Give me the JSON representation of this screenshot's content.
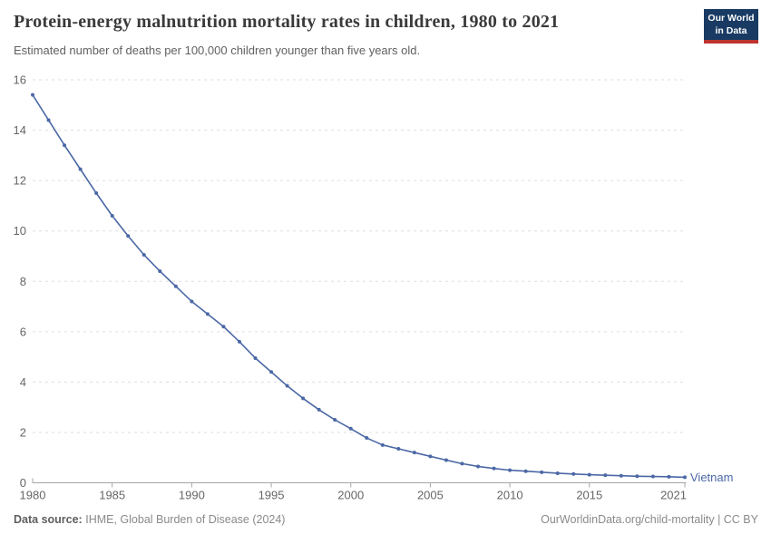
{
  "header": {
    "title": "Protein-energy malnutrition mortality rates in children, 1980 to 2021",
    "subtitle": "Estimated number of deaths per 100,000 children younger than five years old.",
    "logo_line1": "Our World",
    "logo_line2": "in Data"
  },
  "chart_data": {
    "type": "line",
    "title": "Protein-energy malnutrition mortality rates in children, 1980 to 2021",
    "xlabel": "",
    "ylabel": "",
    "xlim": [
      1980,
      2021
    ],
    "ylim": [
      0,
      16
    ],
    "x_ticks": [
      1980,
      1985,
      1990,
      1995,
      2000,
      2005,
      2010,
      2015,
      2021
    ],
    "y_ticks": [
      0,
      2,
      4,
      6,
      8,
      10,
      12,
      14,
      16
    ],
    "grid": "horizontal-dashed",
    "legend_position": "end-of-line-label",
    "x": [
      1980,
      1981,
      1982,
      1983,
      1984,
      1985,
      1986,
      1987,
      1988,
      1989,
      1990,
      1991,
      1992,
      1993,
      1994,
      1995,
      1996,
      1997,
      1998,
      1999,
      2000,
      2001,
      2002,
      2003,
      2004,
      2005,
      2006,
      2007,
      2008,
      2009,
      2010,
      2011,
      2012,
      2013,
      2014,
      2015,
      2016,
      2017,
      2018,
      2019,
      2020,
      2021
    ],
    "series": [
      {
        "name": "Vietnam",
        "color": "#4b68a5",
        "values": [
          15.4,
          14.4,
          13.4,
          12.45,
          11.5,
          10.6,
          9.8,
          9.05,
          8.4,
          7.8,
          7.2,
          6.7,
          6.2,
          5.6,
          4.95,
          4.4,
          3.85,
          3.35,
          2.9,
          2.5,
          2.15,
          1.78,
          1.5,
          1.35,
          1.2,
          1.05,
          0.9,
          0.76,
          0.65,
          0.57,
          0.5,
          0.46,
          0.42,
          0.38,
          0.35,
          0.32,
          0.3,
          0.28,
          0.26,
          0.25,
          0.24,
          0.22
        ]
      }
    ]
  },
  "colors": {
    "series_blue": "#4b68a5",
    "gridline": "#dddddd",
    "axis": "#a5a5a5",
    "tick_label": "#666666",
    "logo_navy": "#183a63",
    "logo_red": "#bd3330"
  },
  "footer": {
    "source_label": "Data source:",
    "source_value": "IHME, Global Burden of Disease (2024)",
    "credit": "OurWorldinData.org/child-mortality | CC BY"
  }
}
